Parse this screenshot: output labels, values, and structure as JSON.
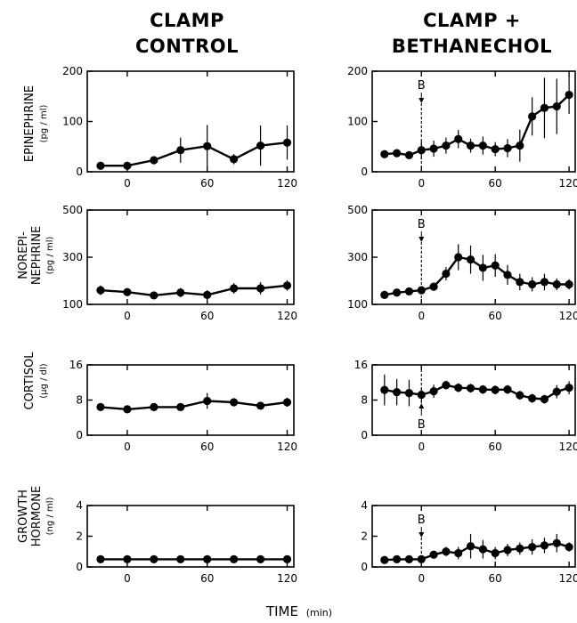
{
  "columns": [
    {
      "title_line1": "CLAMP",
      "title_line2": "CONTROL"
    },
    {
      "title_line1": "CLAMP +",
      "title_line2": "BETHANECHOL"
    }
  ],
  "rows": [
    {
      "label_line1": "EPINEPHRINE",
      "label_line2": "",
      "unit": "(pg / ml)"
    },
    {
      "label_line1": "NOREPI-",
      "label_line2": "NEPHRINE",
      "unit": "(pg / ml)"
    },
    {
      "label_line1": "CORTISOL",
      "label_line2": "",
      "unit": "(µg / dl)"
    },
    {
      "label_line1": "GROWTH",
      "label_line2": "HORMONE",
      "unit": "(ng / ml)"
    }
  ],
  "x_axis": {
    "title": "TIME",
    "unit": "(min)",
    "ticks": [
      0,
      60,
      120
    ]
  },
  "marker": {
    "label": "B",
    "x": 0
  },
  "chart_data": [
    {
      "type": "line",
      "row": 0,
      "col": 0,
      "ylim": [
        0,
        200
      ],
      "yticks": [
        0,
        100,
        200
      ],
      "xlim": [
        -30,
        125
      ],
      "x": [
        -20,
        0,
        20,
        40,
        60,
        80,
        100,
        120
      ],
      "y": [
        12,
        12,
        23,
        43,
        51,
        25,
        52,
        58
      ],
      "err": [
        4,
        4,
        6,
        25,
        42,
        10,
        40,
        34
      ]
    },
    {
      "type": "line",
      "row": 0,
      "col": 1,
      "ylim": [
        0,
        200
      ],
      "yticks": [
        0,
        100,
        200
      ],
      "xlim": [
        -40,
        125
      ],
      "marker": {
        "label": "B",
        "position": "above"
      },
      "x": [
        -30,
        -20,
        -10,
        0,
        10,
        20,
        30,
        40,
        50,
        60,
        70,
        80,
        90,
        100,
        110,
        120
      ],
      "y": [
        35,
        37,
        33,
        43,
        46,
        52,
        65,
        52,
        52,
        45,
        47,
        52,
        110,
        127,
        130,
        153
      ],
      "err": [
        6,
        6,
        6,
        18,
        16,
        16,
        18,
        14,
        18,
        14,
        18,
        32,
        38,
        60,
        55,
        38
      ]
    },
    {
      "type": "line",
      "row": 1,
      "col": 0,
      "ylim": [
        100,
        500
      ],
      "yticks": [
        100,
        300,
        500
      ],
      "xlim": [
        -30,
        125
      ],
      "x": [
        -20,
        0,
        20,
        40,
        60,
        80,
        100,
        120
      ],
      "y": [
        160,
        152,
        138,
        150,
        140,
        168,
        168,
        180
      ],
      "err": [
        20,
        15,
        12,
        20,
        20,
        22,
        26,
        22
      ]
    },
    {
      "type": "line",
      "row": 1,
      "col": 1,
      "ylim": [
        100,
        500
      ],
      "yticks": [
        100,
        300,
        500
      ],
      "xlim": [
        -40,
        125
      ],
      "marker": {
        "label": "B",
        "position": "above"
      },
      "x": [
        -30,
        -20,
        -10,
        0,
        10,
        20,
        30,
        40,
        50,
        60,
        70,
        80,
        90,
        100,
        110,
        120
      ],
      "y": [
        140,
        150,
        155,
        160,
        175,
        230,
        300,
        290,
        255,
        265,
        225,
        195,
        185,
        195,
        185,
        185
      ],
      "err": [
        15,
        15,
        15,
        15,
        15,
        28,
        55,
        60,
        55,
        48,
        42,
        35,
        30,
        35,
        25,
        22
      ]
    },
    {
      "type": "line",
      "row": 2,
      "col": 0,
      "ylim": [
        0,
        16
      ],
      "yticks": [
        0,
        8,
        16
      ],
      "xlim": [
        -30,
        125
      ],
      "x": [
        -20,
        0,
        20,
        40,
        60,
        80,
        100,
        120
      ],
      "y": [
        6.4,
        5.9,
        6.4,
        6.4,
        7.8,
        7.5,
        6.7,
        7.5
      ],
      "err": [
        0.6,
        0.6,
        0.8,
        0.9,
        1.8,
        0.6,
        0.5,
        1.0
      ]
    },
    {
      "type": "line",
      "row": 2,
      "col": 1,
      "ylim": [
        0,
        16
      ],
      "yticks": [
        0,
        8,
        16
      ],
      "xlim": [
        -40,
        125
      ],
      "marker": {
        "label": "B",
        "position": "below"
      },
      "x": [
        -30,
        -20,
        -10,
        0,
        10,
        20,
        30,
        40,
        50,
        60,
        70,
        80,
        90,
        100,
        110,
        120
      ],
      "y": [
        10.3,
        9.8,
        9.6,
        9.2,
        10.0,
        11.4,
        10.8,
        10.7,
        10.4,
        10.3,
        10.4,
        9.1,
        8.4,
        8.2,
        9.9,
        10.8
      ],
      "err": [
        3.5,
        3.0,
        3.0,
        1.5,
        1.5,
        1.0,
        1.0,
        1.0,
        1.0,
        1.0,
        1.0,
        1.0,
        1.0,
        1.0,
        1.5,
        1.5
      ]
    },
    {
      "type": "line",
      "row": 3,
      "col": 0,
      "ylim": [
        0,
        4
      ],
      "yticks": [
        0,
        2,
        4
      ],
      "xlim": [
        -30,
        125
      ],
      "x": [
        -20,
        0,
        20,
        40,
        60,
        80,
        100,
        120
      ],
      "y": [
        0.5,
        0.5,
        0.5,
        0.5,
        0.5,
        0.5,
        0.5,
        0.5
      ],
      "err": [
        0,
        0,
        0,
        0,
        0,
        0,
        0,
        0
      ]
    },
    {
      "type": "line",
      "row": 3,
      "col": 1,
      "ylim": [
        0,
        4
      ],
      "yticks": [
        0,
        2,
        4
      ],
      "xlim": [
        -40,
        125
      ],
      "marker": {
        "label": "B",
        "position": "above"
      },
      "x": [
        -30,
        -20,
        -10,
        0,
        10,
        20,
        30,
        40,
        50,
        60,
        70,
        80,
        90,
        100,
        110,
        120
      ],
      "y": [
        0.45,
        0.5,
        0.5,
        0.5,
        0.8,
        1.0,
        0.9,
        1.35,
        1.15,
        0.9,
        1.1,
        1.2,
        1.3,
        1.4,
        1.55,
        1.3
      ],
      "err": [
        0.1,
        0.1,
        0.1,
        0.1,
        0.2,
        0.3,
        0.4,
        0.8,
        0.6,
        0.4,
        0.4,
        0.4,
        0.5,
        0.5,
        0.6,
        0.3
      ]
    }
  ]
}
